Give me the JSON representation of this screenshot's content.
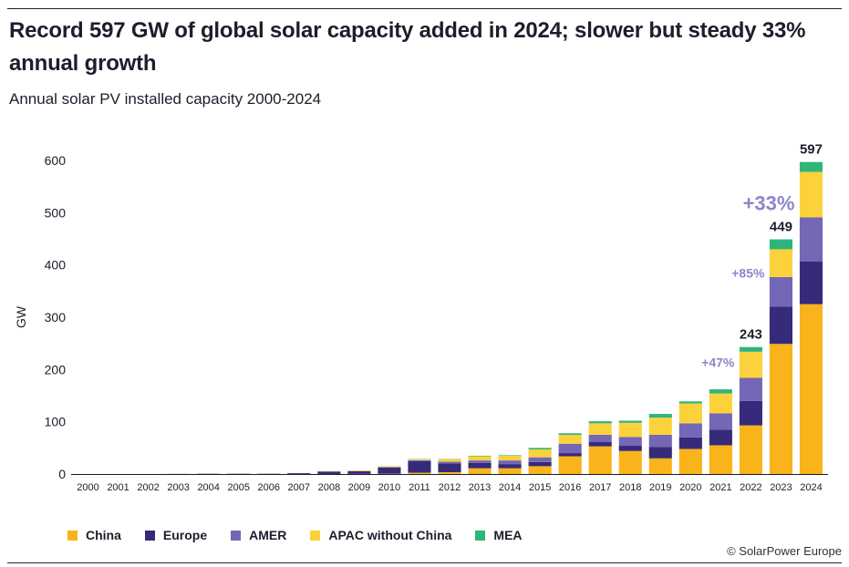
{
  "title": "Record 597 GW of global solar capacity added in 2024; slower but steady 33% annual growth",
  "subtitle": "Annual solar PV installed capacity 2000-2024",
  "credit": "© SolarPower Europe",
  "chart_data": {
    "type": "bar",
    "stacked": true,
    "title": "Annual solar PV installed capacity 2000-2024",
    "xlabel": "",
    "ylabel": "GW",
    "ylim": [
      0,
      600
    ],
    "yticks": [
      0,
      100,
      200,
      300,
      400,
      500,
      600
    ],
    "categories": [
      "2000",
      "2001",
      "2002",
      "2003",
      "2004",
      "2005",
      "2006",
      "2007",
      "2008",
      "2009",
      "2010",
      "2011",
      "2012",
      "2013",
      "2014",
      "2015",
      "2016",
      "2017",
      "2018",
      "2019",
      "2020",
      "2021",
      "2022",
      "2023",
      "2024"
    ],
    "series": [
      {
        "name": "China",
        "color": "#f9b31b",
        "values": [
          0,
          0,
          0,
          0,
          0,
          0,
          0,
          0,
          0,
          0.2,
          0.5,
          2.5,
          3.5,
          11,
          11,
          15,
          34,
          53,
          44,
          30,
          48,
          55,
          93,
          249,
          325
        ]
      },
      {
        "name": "Europe",
        "color": "#362a7a",
        "values": [
          0,
          0,
          0,
          0.2,
          0.5,
          0.5,
          0.5,
          1.5,
          4.5,
          5,
          12,
          22,
          17,
          10,
          8,
          8,
          6,
          8,
          10,
          22,
          22,
          30,
          47,
          71,
          82
        ]
      },
      {
        "name": "AMER",
        "color": "#7467b5",
        "values": [
          0,
          0,
          0,
          0,
          0,
          0,
          0,
          0.3,
          0.5,
          0.5,
          1,
          2,
          3,
          5,
          7,
          9,
          18,
          14,
          17,
          23,
          27,
          31,
          44,
          57,
          84
        ]
      },
      {
        "name": "APAC without China",
        "color": "#fcd23c",
        "values": [
          0,
          0,
          0,
          0,
          0,
          0,
          0,
          0.2,
          0.5,
          1,
          1.5,
          2,
          5,
          8,
          9,
          15,
          17,
          22,
          27,
          33,
          38,
          38,
          50,
          53,
          87
        ]
      },
      {
        "name": "MEA",
        "color": "#2fb57a",
        "values": [
          0,
          0,
          0,
          0,
          0,
          0,
          0,
          0,
          0,
          0,
          0,
          0.5,
          0.5,
          1,
          1,
          3,
          3,
          4,
          4,
          7,
          4,
          8,
          9,
          19,
          19
        ]
      }
    ],
    "totals": [
      {
        "year": "2022",
        "label": "243"
      },
      {
        "year": "2023",
        "label": "449"
      },
      {
        "year": "2024",
        "label": "597"
      }
    ],
    "growth_labels": [
      {
        "year": "2022",
        "label": "+47%"
      },
      {
        "year": "2023",
        "label": "+85%"
      },
      {
        "year": "2024",
        "label": "+33%"
      }
    ]
  }
}
